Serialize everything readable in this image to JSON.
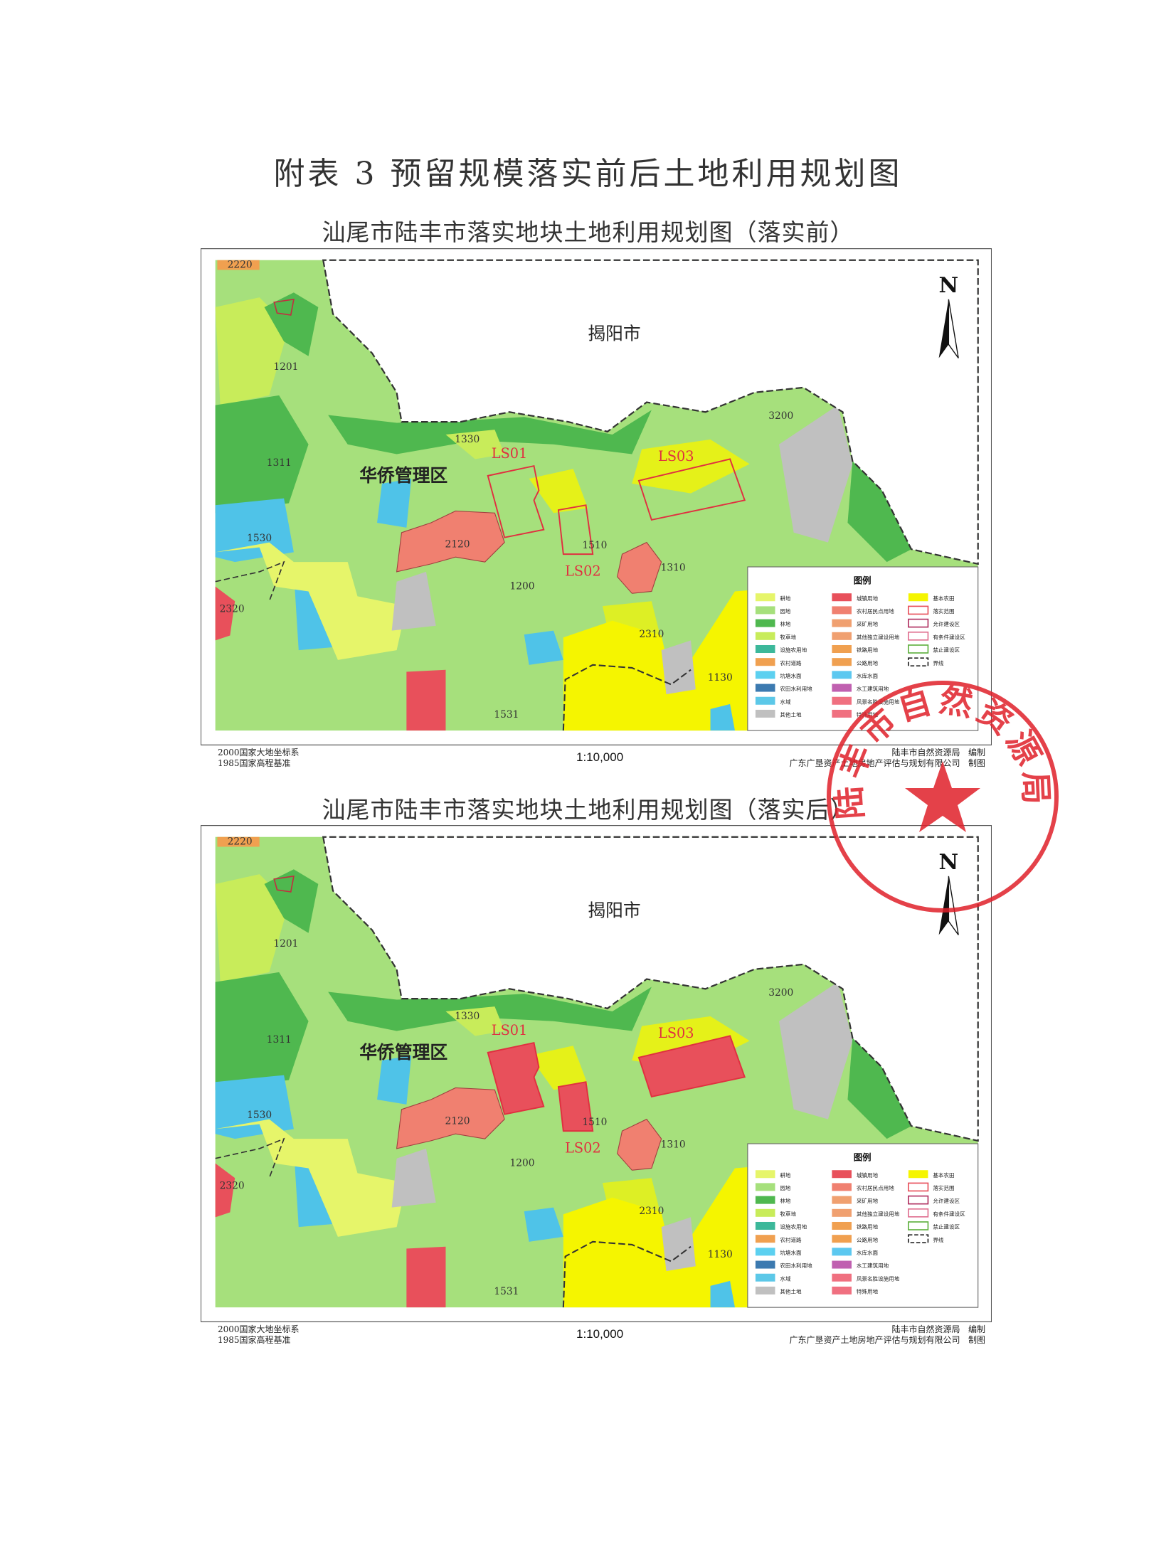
{
  "page_title": "附表 3   预留规模落实前后土地利用规划图",
  "maps": [
    {
      "title": "汕尾市陆丰市落实地块土地利用规划图（落实前）",
      "state": "before"
    },
    {
      "title": "汕尾市陆丰市落实地块土地利用规划图（落实后）",
      "state": "after"
    }
  ],
  "map_labels": {
    "neighbor": "揭阳市",
    "district": "华侨管理区",
    "north": "N",
    "codes": [
      "2220",
      "1201",
      "1311",
      "1330",
      "1530",
      "2320",
      "2120",
      "1510",
      "1200",
      "1310",
      "2310",
      "1130",
      "1531",
      "3200"
    ],
    "plots": [
      "LS01",
      "LS02",
      "LS03"
    ]
  },
  "legend": {
    "title": "图例",
    "items": [
      {
        "label": "耕地",
        "color": "#e6f56a"
      },
      {
        "label": "园地",
        "color": "#a6e07c"
      },
      {
        "label": "林地",
        "color": "#4fb84f"
      },
      {
        "label": "牧草地",
        "color": "#c8ec5a"
      },
      {
        "label": "设施农用地",
        "color": "#3cb89a"
      },
      {
        "label": "农村道路",
        "color": "#f0a050"
      },
      {
        "label": "坑塘水面",
        "color": "#5cd0f0"
      },
      {
        "label": "农田水利用地",
        "color": "#3c7ab0"
      },
      {
        "label": "水域",
        "color": "#5cc8e8"
      },
      {
        "label": "其他土地",
        "color": "#c0c0c0"
      },
      {
        "label": "城镇用地",
        "color": "#e8505b"
      },
      {
        "label": "农村居民点用地",
        "color": "#f08070"
      },
      {
        "label": "采矿用地",
        "color": "#f0a070"
      },
      {
        "label": "其他独立建设用地",
        "color": "#f0a070"
      },
      {
        "label": "铁路用地",
        "color": "#f0a050"
      },
      {
        "label": "公路用地",
        "color": "#f0a050"
      },
      {
        "label": "水库水面",
        "color": "#5cc8f0"
      },
      {
        "label": "水工建筑用地",
        "color": "#c060b0"
      },
      {
        "label": "风景名胜设施用地",
        "color": "#f07080"
      },
      {
        "label": "特殊用地",
        "color": "#f07080"
      },
      {
        "label": "基本农田",
        "color": "#f5f500"
      },
      {
        "label": "落实范围",
        "color": "#e8505b"
      },
      {
        "label": "允许建设区",
        "color": "#b03060"
      },
      {
        "label": "有条件建设区",
        "color": "#e07090"
      },
      {
        "label": "禁止建设区",
        "color": "#60b040"
      },
      {
        "label": "界线",
        "color": "#222222"
      }
    ]
  },
  "footer": {
    "coord_system": "2000国家大地坐标系",
    "height_datum": "1985国家高程基准",
    "scale": "1:10,000",
    "org1": "陆丰市自然资源局",
    "org1_role": "编制",
    "org2": "广东广垦资产土地房地产评估与规划有限公司",
    "org2_role": "制图"
  },
  "stamp": {
    "text": "陆丰市自然资源局",
    "color": "#e0202a"
  }
}
